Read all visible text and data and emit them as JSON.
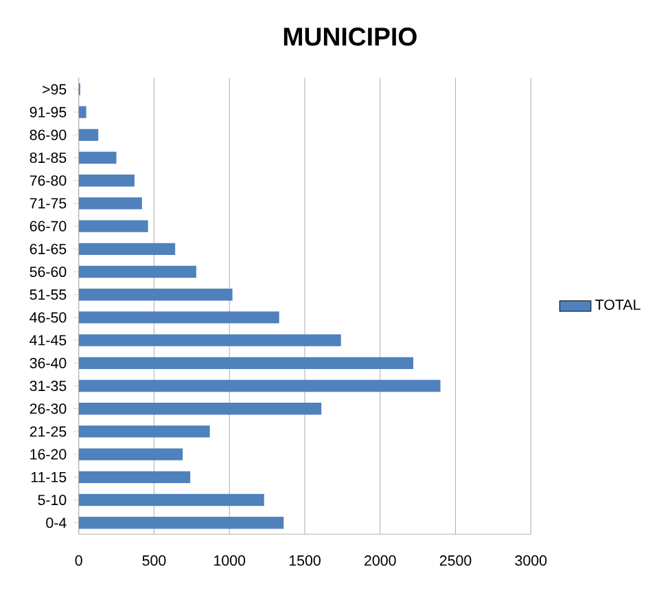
{
  "chart_data": {
    "type": "bar",
    "orientation": "horizontal",
    "title": "MUNICIPIO",
    "categories": [
      ">95",
      "91-95",
      "86-90",
      "81-85",
      "76-80",
      "71-75",
      "66-70",
      "61-65",
      "56-60",
      "51-55",
      "46-50",
      "41-45",
      "36-40",
      "31-35",
      "26-30",
      "21-25",
      "16-20",
      "11-15",
      "5-10",
      "0-4"
    ],
    "series": [
      {
        "name": "TOTAL",
        "color": "#4f81bd",
        "values": [
          10,
          50,
          130,
          250,
          370,
          420,
          460,
          640,
          780,
          1020,
          1330,
          1740,
          2220,
          2400,
          1610,
          870,
          690,
          740,
          1230,
          1360
        ]
      }
    ],
    "xlim": [
      0,
      3000
    ],
    "xticks": [
      0,
      500,
      1000,
      1500,
      2000,
      2500,
      3000
    ],
    "grid": "x",
    "legend": "right"
  }
}
